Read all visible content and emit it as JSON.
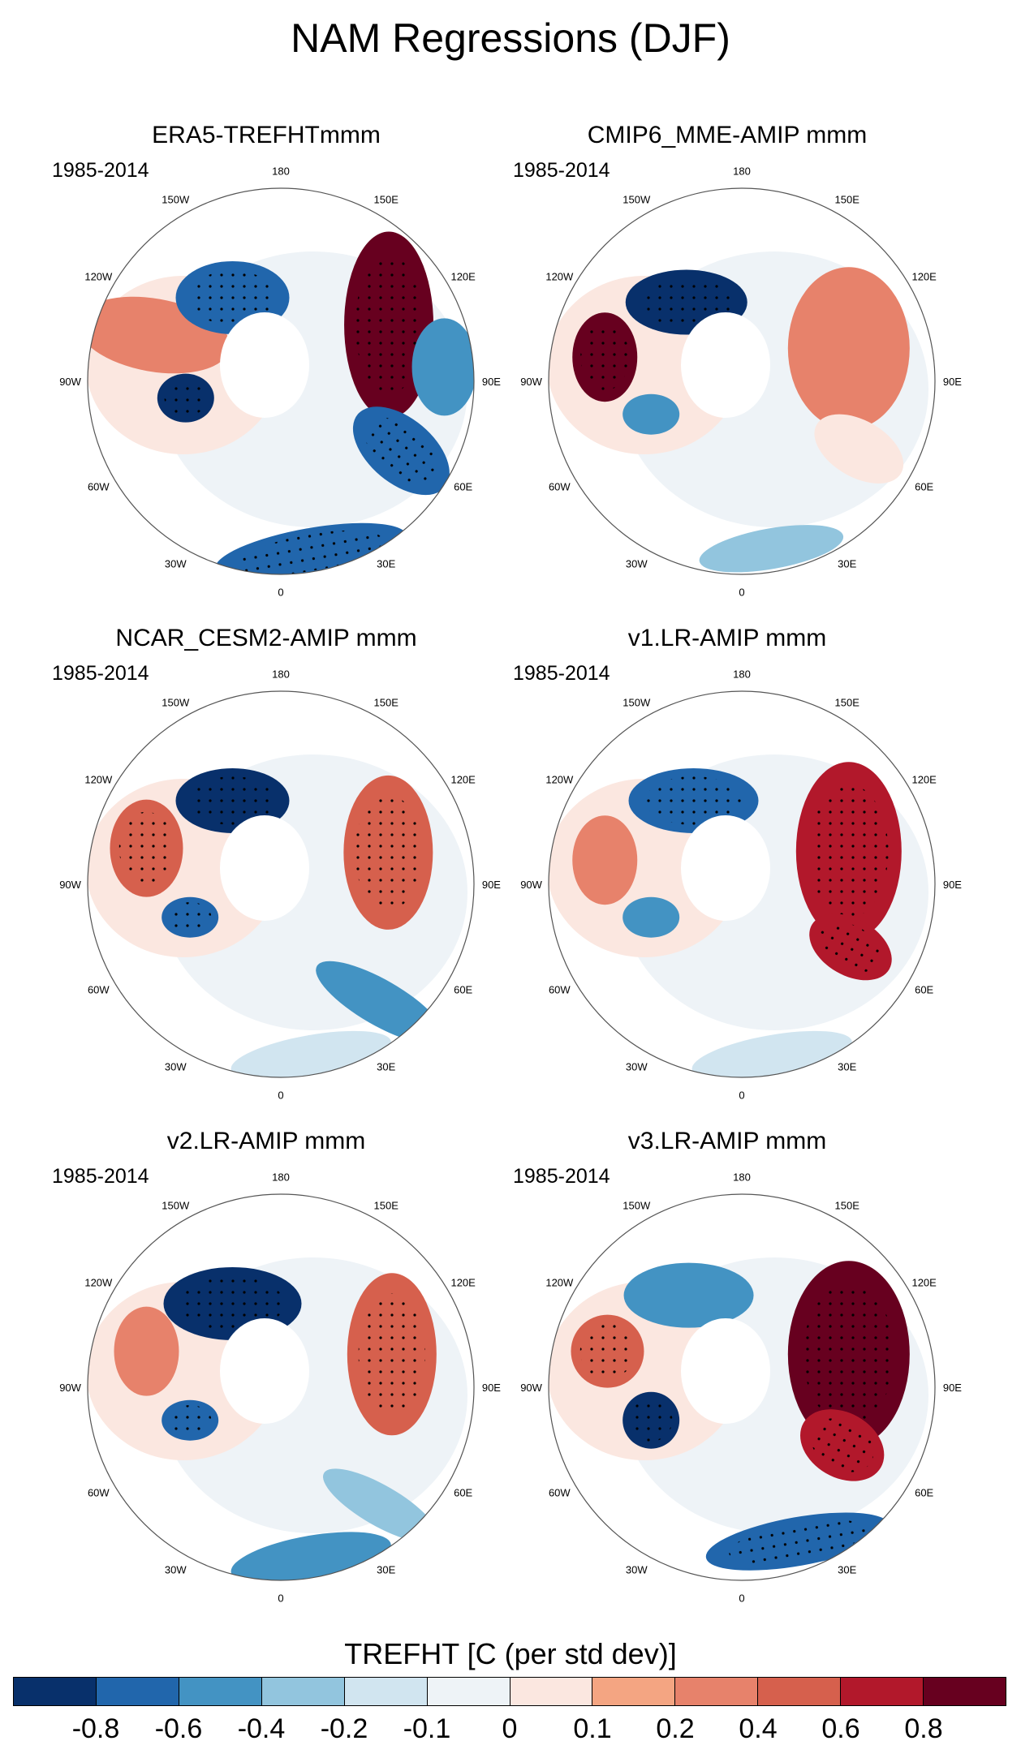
{
  "title": "NAM Regressions (DJF)",
  "colorbar": {
    "title": "TREFHT [C (per std dev)]",
    "colors": [
      "#08306b",
      "#2166ac",
      "#4393c3",
      "#92c5de",
      "#d1e5f0",
      "#eef3f7",
      "#fbe7e0",
      "#f4a582",
      "#e7826b",
      "#d6604d",
      "#b2182b",
      "#67001f"
    ],
    "labels": [
      "-0.8",
      "-0.6",
      "-0.4",
      "-0.2",
      "-0.1",
      "0",
      "0.1",
      "0.2",
      "0.4",
      "0.6",
      "0.8"
    ]
  },
  "lon_labels": [
    "180",
    "150E",
    "120E",
    "90E",
    "60E",
    "30E",
    "0",
    "30W",
    "60W",
    "90W",
    "120W",
    "150W"
  ],
  "panels": [
    {
      "title": "ERA5-TREFHTmmm",
      "period": "1985-2014"
    },
    {
      "title": "CMIP6_MME-AMIP  mmm",
      "period": "1985-2014"
    },
    {
      "title": "NCAR_CESM2-AMIP  mmm",
      "period": "1985-2014"
    },
    {
      "title": "v1.LR-AMIP  mmm",
      "period": "1985-2014"
    },
    {
      "title": "v2.LR-AMIP  mmm",
      "period": "1985-2014"
    },
    {
      "title": "v3.LR-AMIP  mmm",
      "period": "1985-2014"
    }
  ]
}
